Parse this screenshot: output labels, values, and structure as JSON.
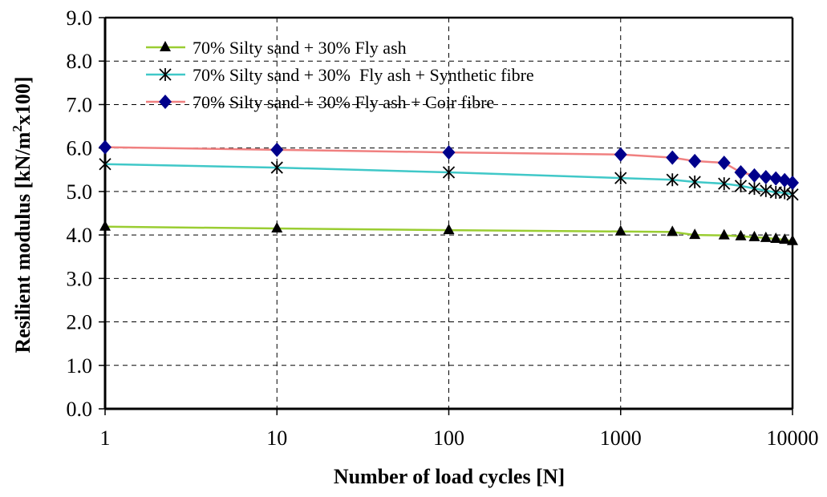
{
  "chart_data": {
    "type": "line",
    "title": "",
    "xlabel": "Number of load cycles [N]",
    "ylabel_main": "Resilient modulus [kN/m",
    "ylabel_sup": "2",
    "ylabel_tail": "x100]",
    "x_scale": "log",
    "xlim": [
      1,
      10000
    ],
    "ylim": [
      0,
      9
    ],
    "grid": true,
    "legend_position": "top-left",
    "x_ticks": [
      "1",
      "10",
      "100",
      "1000",
      "10000"
    ],
    "y_ticks": [
      "0.0",
      "1.0",
      "2.0",
      "3.0",
      "4.0",
      "5.0",
      "6.0",
      "7.0",
      "8.0",
      "9.0"
    ],
    "x": [
      1,
      10,
      100,
      1000,
      2000,
      2700,
      4000,
      5000,
      6000,
      7000,
      8000,
      9000,
      10000
    ],
    "series": [
      {
        "name": "70% Silty sand + 30% Fly ash",
        "color": "#9acd32",
        "marker": "triangle",
        "values": [
          4.19,
          4.15,
          4.11,
          4.08,
          4.07,
          4.0,
          3.99,
          3.97,
          3.95,
          3.93,
          3.91,
          3.89,
          3.86
        ]
      },
      {
        "name": "70% Silty sand + 30%  Fly ash + Synthetic fibre",
        "color": "#40c8c8",
        "marker": "asterisk",
        "values": [
          5.63,
          5.55,
          5.44,
          5.31,
          5.27,
          5.22,
          5.18,
          5.13,
          5.07,
          5.02,
          4.98,
          4.97,
          4.93
        ]
      },
      {
        "name": "70% Silty sand + 30% Fly ash + Coir fibre",
        "color": "#f08080",
        "marker": "diamond",
        "values": [
          6.02,
          5.96,
          5.9,
          5.85,
          5.78,
          5.7,
          5.66,
          5.44,
          5.37,
          5.33,
          5.3,
          5.26,
          5.2
        ]
      }
    ]
  }
}
